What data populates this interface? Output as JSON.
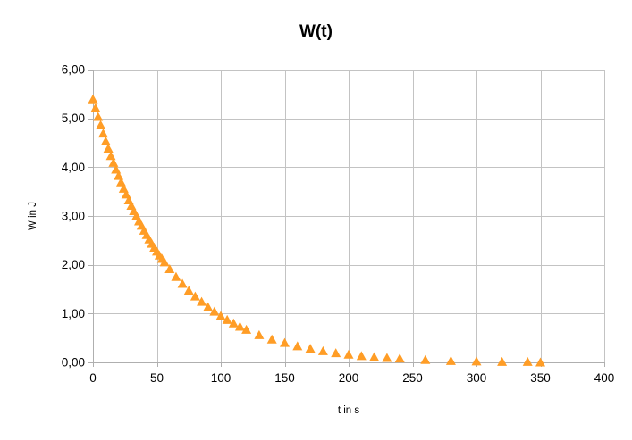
{
  "colors": {
    "series": "#FF9D26",
    "gridline": "#C3C3C3",
    "axis": "#AFAFAF",
    "text": "#000000",
    "background": "#FFFFFF"
  },
  "chart_data": {
    "type": "scatter",
    "marker": "triangle-up",
    "title": "W(t)",
    "xlabel": "t in s",
    "ylabel": "W in J",
    "xlim": [
      0,
      400
    ],
    "ylim": [
      0,
      6
    ],
    "x_ticks": [
      0,
      50,
      100,
      150,
      200,
      250,
      300,
      350,
      400
    ],
    "x_tick_labels": [
      "0",
      "50",
      "100",
      "150",
      "200",
      "250",
      "300",
      "350",
      "400"
    ],
    "y_ticks": [
      0,
      1,
      2,
      3,
      4,
      5,
      6
    ],
    "y_tick_labels": [
      "0,00",
      "1,00",
      "2,00",
      "3,00",
      "4,00",
      "5,00",
      "6,00"
    ],
    "grid": true,
    "legend": false,
    "series": [
      {
        "name": "W",
        "x": [
          0,
          2,
          4,
          6,
          8,
          10,
          12,
          14,
          16,
          18,
          20,
          22,
          24,
          26,
          28,
          30,
          32,
          34,
          36,
          38,
          40,
          42,
          44,
          46,
          48,
          50,
          52,
          54,
          56,
          60,
          65,
          70,
          75,
          80,
          85,
          90,
          95,
          100,
          105,
          110,
          115,
          120,
          130,
          140,
          150,
          160,
          170,
          180,
          190,
          200,
          210,
          220,
          230,
          240,
          260,
          280,
          300,
          320,
          340,
          350
        ],
        "y": [
          5.4,
          5.22,
          5.04,
          4.87,
          4.7,
          4.54,
          4.39,
          4.24,
          4.1,
          3.96,
          3.83,
          3.7,
          3.57,
          3.45,
          3.33,
          3.22,
          3.11,
          3.01,
          2.9,
          2.81,
          2.71,
          2.62,
          2.53,
          2.44,
          2.36,
          2.28,
          2.2,
          2.13,
          2.06,
          1.92,
          1.76,
          1.62,
          1.48,
          1.36,
          1.25,
          1.14,
          1.05,
          0.96,
          0.88,
          0.81,
          0.74,
          0.68,
          0.57,
          0.48,
          0.41,
          0.34,
          0.29,
          0.24,
          0.2,
          0.17,
          0.14,
          0.12,
          0.1,
          0.09,
          0.06,
          0.04,
          0.03,
          0.02,
          0.02,
          0.01
        ]
      }
    ]
  }
}
